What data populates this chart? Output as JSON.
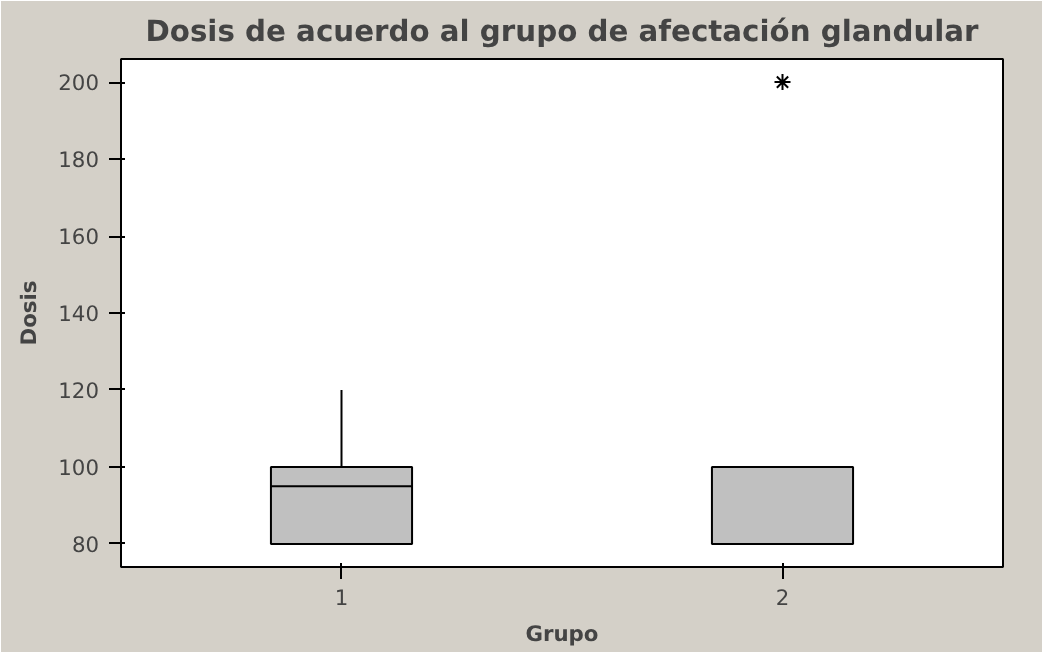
{
  "chart_data": {
    "type": "box",
    "title": "Dosis de acuerdo al grupo de afectación glandular",
    "xlabel": "Grupo",
    "ylabel": "Dosis",
    "categories": [
      "1",
      "2"
    ],
    "color": "#c0c0c0",
    "boxes": [
      {
        "low": 80,
        "q1": 80,
        "median": 95,
        "q3": 100,
        "high": 120
      },
      {
        "low": 80,
        "q1": 80,
        "median": 80,
        "q3": 100,
        "high": 100,
        "outliers": [
          200
        ]
      }
    ],
    "ylim": [
      74,
      206
    ],
    "yticks": [
      80,
      100,
      120,
      140,
      160,
      180,
      200
    ],
    "grid": false
  }
}
